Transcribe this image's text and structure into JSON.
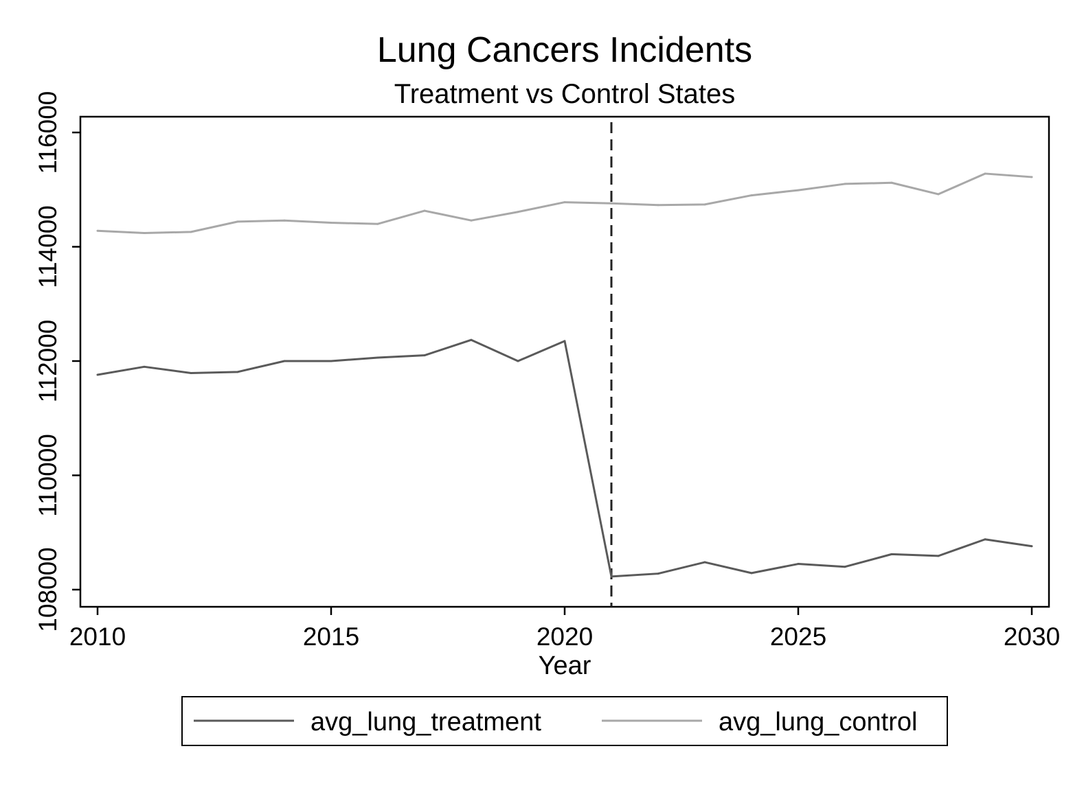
{
  "chart_data": {
    "type": "line",
    "title": "Lung Cancers Incidents",
    "subtitle": "Treatment vs Control States",
    "xlabel": "Year",
    "ylabel": "",
    "xlim": [
      2010,
      2030
    ],
    "ylim": [
      107700,
      116300
    ],
    "x_ticks": [
      2010,
      2015,
      2020,
      2025,
      2030
    ],
    "x_tick_labels": [
      "2010",
      "2015",
      "2020",
      "2025",
      "2030"
    ],
    "y_ticks": [
      108000,
      110000,
      112000,
      114000,
      116000
    ],
    "y_tick_labels": [
      "108000",
      "110000",
      "112000",
      "114000",
      "116000"
    ],
    "reference_line": {
      "x": 2021,
      "style": "dashed"
    },
    "grid": false,
    "legend": {
      "position": "bottom"
    },
    "x": [
      2010,
      2011,
      2012,
      2013,
      2014,
      2015,
      2016,
      2017,
      2018,
      2019,
      2020,
      2021,
      2022,
      2023,
      2024,
      2025,
      2026,
      2027,
      2028,
      2029,
      2030
    ],
    "series": [
      {
        "name": "avg_lung_treatment",
        "color": "#5a5a5a",
        "values": [
          111760,
          111900,
          111790,
          111810,
          112000,
          112000,
          112060,
          112100,
          112370,
          112000,
          112350,
          108230,
          108280,
          108480,
          108290,
          108450,
          108400,
          108620,
          108590,
          108880,
          108760
        ]
      },
      {
        "name": "avg_lung_control",
        "color": "#a8a8a8",
        "values": [
          114280,
          114240,
          114260,
          114440,
          114460,
          114420,
          114400,
          114630,
          114460,
          114610,
          114780,
          114760,
          114730,
          114740,
          114900,
          114990,
          115100,
          115120,
          114920,
          115280,
          115220
        ]
      }
    ]
  }
}
